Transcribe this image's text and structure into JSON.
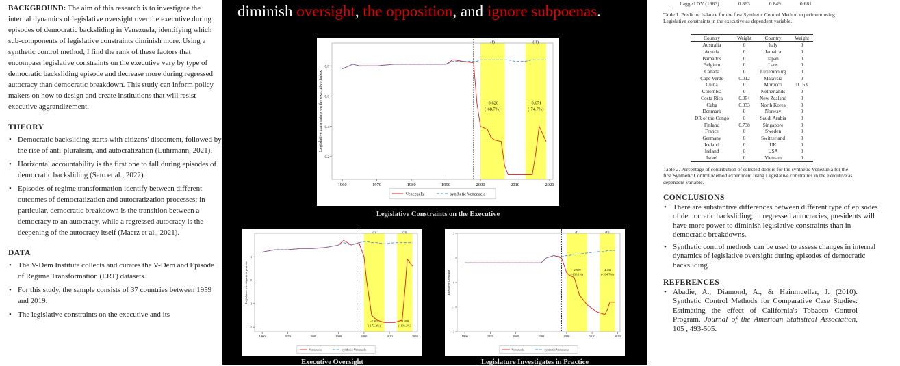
{
  "left": {
    "background_label": "BACKGROUND:",
    "background": "The aim of this research is to investigate the internal dynamics of legislative oversight over the executive during episodes of democratic backsliding in Venezuela, identifying which sub-components of legislative constraints diminish more. Using a synthetic control method, I find the rank of these factors that encompass legislative constraints on the executive vary by type of democratic backsliding episode and decrease more during regressed autocracy than democratic breakdown. This study can inform policy makers on how to design and create institutions that will resist executive aggrandizement.",
    "theory_title": "THEORY",
    "theory": [
      "Democratic backsliding starts with citizens' discontent, followed by the rise of anti-pluralism, and autocratization (Lührmann, 2021).",
      "Horizontal accountability is the first one to fall during episodes of democratic backsliding (Sato et al., 2022).",
      "Episodes of regime transformation identify between different outcomes of democratization and autocratization processes; in particular, democratic breakdown is the transition between a democracy to an autocracy, while a regressed autocracy is the deepening of the autocracy itself (Maerz et al., 2021)."
    ],
    "data_title": "DATA",
    "data": [
      "The V-Dem Institute collects and curates the V-Dem and Episode of Regime Transformation (ERT) datasets.",
      "For this study, the sample consists of 37 countries between 1959 and 2019.",
      "The legislative constraints on the executive and its"
    ]
  },
  "headline": [
    {
      "text": "diminish ",
      "highlight": false
    },
    {
      "text": "oversight",
      "highlight": true
    },
    {
      "text": ", ",
      "highlight": false
    },
    {
      "text": "the opposition",
      "highlight": true
    },
    {
      "text": ", and ",
      "highlight": false
    },
    {
      "text": "ignore subpoenas",
      "highlight": true
    },
    {
      "text": ".",
      "highlight": false
    }
  ],
  "chart_data": [
    {
      "type": "line",
      "caption": "Legislative Constraints on the Executive",
      "y_label": "Legislative constraints on the executive index",
      "x": [
        1960,
        1962,
        1963,
        1965,
        1970,
        1975,
        1980,
        1985,
        1990,
        1992,
        1995,
        1998,
        1999,
        2000,
        2002,
        2003,
        2004,
        2006,
        2007,
        2008,
        2010,
        2013,
        2015,
        2016,
        2017,
        2019
      ],
      "xlim": [
        1957,
        2021
      ],
      "xticks": [
        1960,
        1970,
        1980,
        1990,
        2000,
        2010,
        2020
      ],
      "ylim": [
        0.05,
        0.95
      ],
      "yticks": [
        0.2,
        0.4,
        0.6,
        0.8
      ],
      "event_x": 1998,
      "highlight_color": "#ffff66",
      "periods": [
        {
          "label": "(I)",
          "start": 2000,
          "end": 2007,
          "change": "-0.620",
          "pct": "(-68.7%)"
        },
        {
          "label": "(II)",
          "start": 2013,
          "end": 2019,
          "change": "-0.671",
          "pct": "(-74.7%)"
        }
      ],
      "series": [
        {
          "name": "Venezuela",
          "color": "#e31a1c",
          "dashed": false,
          "values": [
            0.78,
            0.8,
            0.81,
            0.8,
            0.8,
            0.81,
            0.81,
            0.81,
            0.81,
            0.84,
            0.83,
            0.82,
            0.55,
            0.4,
            0.38,
            0.33,
            0.31,
            0.3,
            0.14,
            0.08,
            0.08,
            0.08,
            0.08,
            0.22,
            0.4,
            0.3
          ]
        },
        {
          "name": "synthetic Venezuela",
          "color": "#4a90d9",
          "dashed": true,
          "values": [
            0.78,
            0.8,
            0.81,
            0.8,
            0.8,
            0.81,
            0.81,
            0.81,
            0.81,
            0.83,
            0.83,
            0.83,
            0.83,
            0.84,
            0.84,
            0.84,
            0.84,
            0.84,
            0.84,
            0.84,
            0.83,
            0.83,
            0.84,
            0.84,
            0.84,
            0.84
          ]
        }
      ]
    },
    {
      "type": "line",
      "caption": "Executive Oversight",
      "y_label": "Legislature investigates in practice",
      "x": [
        1960,
        1965,
        1970,
        1975,
        1980,
        1985,
        1990,
        1992,
        1995,
        1998,
        2000,
        2001,
        2003,
        2005,
        2008,
        2012,
        2015,
        2016,
        2017,
        2019
      ],
      "xlim": [
        1957,
        2021
      ],
      "xticks": [
        1960,
        1970,
        1980,
        1990,
        2000,
        2010,
        2020
      ],
      "ylim": [
        -2.2,
        2
      ],
      "yticks": [
        -2,
        -1,
        0,
        1
      ],
      "event_x": 1998,
      "highlight_color": "#ffff66",
      "periods": [
        {
          "label": "(I)",
          "start": 2000,
          "end": 2008,
          "change": "-2.387",
          "pct": "(-172.2%)"
        },
        {
          "label": "(II)",
          "start": 2013,
          "end": 2019,
          "change": "-1.408",
          "pct": "(-101.2%)"
        }
      ],
      "series": [
        {
          "name": "Venezuela",
          "color": "#e31a1c",
          "dashed": false,
          "values": [
            1.2,
            1.3,
            1.3,
            1.35,
            1.35,
            1.4,
            1.5,
            1.7,
            1.5,
            1.6,
            1.0,
            0,
            -1.5,
            -1.7,
            -1.8,
            -1.8,
            -1.7,
            -0.5,
            0.9,
            0.6
          ]
        },
        {
          "name": "synthetic Venezuela",
          "color": "#4a90d9",
          "dashed": true,
          "values": [
            1.2,
            1.3,
            1.3,
            1.35,
            1.35,
            1.4,
            1.5,
            1.6,
            1.5,
            1.6,
            1.65,
            1.65,
            1.6,
            1.6,
            1.55,
            1.6,
            1.6,
            1.6,
            1.6,
            1.6
          ]
        }
      ]
    },
    {
      "type": "line",
      "caption": "Legislature Investigates in Practice",
      "y_label": "Executive Oversight",
      "x": [
        1960,
        1965,
        1970,
        1975,
        1980,
        1985,
        1990,
        1992,
        1995,
        1998,
        2000,
        2001,
        2003,
        2005,
        2008,
        2012,
        2015,
        2016,
        2017,
        2019
      ],
      "xlim": [
        1957,
        2021
      ],
      "xticks": [
        1960,
        1970,
        1980,
        1990,
        2000,
        2010,
        2020
      ],
      "ylim": [
        -2,
        2
      ],
      "yticks": [
        -2,
        -1,
        0,
        1,
        2
      ],
      "event_x": 1998,
      "highlight_color": "#ffff66",
      "periods": [
        {
          "label": "(I)",
          "start": 2000,
          "end": 2008,
          "change": "-2.999",
          "pct": "(-130.1%)"
        },
        {
          "label": "(II)",
          "start": 2013,
          "end": 2019,
          "change": "-4.431",
          "pct": "(-184.7%)"
        }
      ],
      "series": [
        {
          "name": "Venezuela",
          "color": "#e31a1c",
          "dashed": false,
          "values": [
            0.8,
            0.8,
            0.8,
            0.8,
            0.8,
            0.8,
            0.8,
            1.0,
            1.1,
            1.0,
            0.4,
            0.3,
            0.2,
            -0.5,
            -0.9,
            -1.2,
            -1.3,
            -1.1,
            -0.8,
            -0.8
          ]
        },
        {
          "name": "synthetic Venezuela",
          "color": "#4a90d9",
          "dashed": true,
          "values": [
            0.8,
            0.8,
            0.8,
            0.8,
            0.8,
            0.8,
            0.8,
            1.0,
            1.1,
            1.05,
            1.1,
            1.1,
            1.15,
            1.15,
            1.2,
            1.25,
            1.25,
            1.3,
            1.3,
            1.3
          ]
        }
      ]
    }
  ],
  "right": {
    "table1_row": [
      "Lagged DV (1963)",
      "0.863",
      "0.849",
      "0.681"
    ],
    "table1_caption": "Table 1. Predictor balance for the first Synthetic Control Method experiment using Legislative constraints in the executive as dependent variable.",
    "table2": {
      "header": [
        "Country",
        "Weight",
        "Country",
        "Weight"
      ],
      "rows": [
        [
          "Australia",
          "0",
          "Italy",
          "0"
        ],
        [
          "Austria",
          "0",
          "Jamaica",
          "0"
        ],
        [
          "Barbados",
          "0",
          "Japan",
          "0"
        ],
        [
          "Belgium",
          "0",
          "Laos",
          "0"
        ],
        [
          "Canada",
          "0",
          "Luxembourg",
          "0"
        ],
        [
          "Cape Verde",
          "0.012",
          "Malaysia",
          "0"
        ],
        [
          "China",
          "0",
          "Morocco",
          "0.163"
        ],
        [
          "Colombia",
          "0",
          "Netherlands",
          "0"
        ],
        [
          "Costa Rica",
          "0.054",
          "New Zealand",
          "0"
        ],
        [
          "Cuba",
          "0.033",
          "North Korea",
          "0"
        ],
        [
          "Denmark",
          "0",
          "Norway",
          "0"
        ],
        [
          "DR of the Congo",
          "0",
          "Saudi Arabia",
          "0"
        ],
        [
          "Finland",
          "0.738",
          "Singapore",
          "0"
        ],
        [
          "France",
          "0",
          "Sweden",
          "0"
        ],
        [
          "Germany",
          "0",
          "Switzerland",
          "0"
        ],
        [
          "Iceland",
          "0",
          "UK",
          "0"
        ],
        [
          "Ireland",
          "0",
          "USA",
          "0"
        ],
        [
          "Israel",
          "0",
          "Vietnam",
          "0"
        ]
      ]
    },
    "table2_caption": "Table 2. Percentage of contribution of selected donors for the synthetic Venezuela for the first Synthetic Control Method experiment using Legislative constraints in the executive as dependent variable.",
    "conclusions_title": "CONCLUSIONS",
    "conclusions": [
      "There are substantive differences between different type of episodes of democratic backsliding; in regressed autocracies, presidents will have more power to diminish legislative constraints than in democratic breakdowns.",
      "Synthetic control methods can be used to assess changes in internal dynamics of legislative oversight during episodes of democratic backsliding."
    ],
    "references_title": "REFERENCES",
    "reference": {
      "text": "Abadie, A., Diamond, A., & Hainmueller, J. (2010). Synthetic Control Methods for Comparative Case Studies: Estimating the effect of California's Tobacco Control Program. ",
      "journal": "Journal of the American Statistical Association",
      "tail": ", 105 , 493-505."
    }
  }
}
